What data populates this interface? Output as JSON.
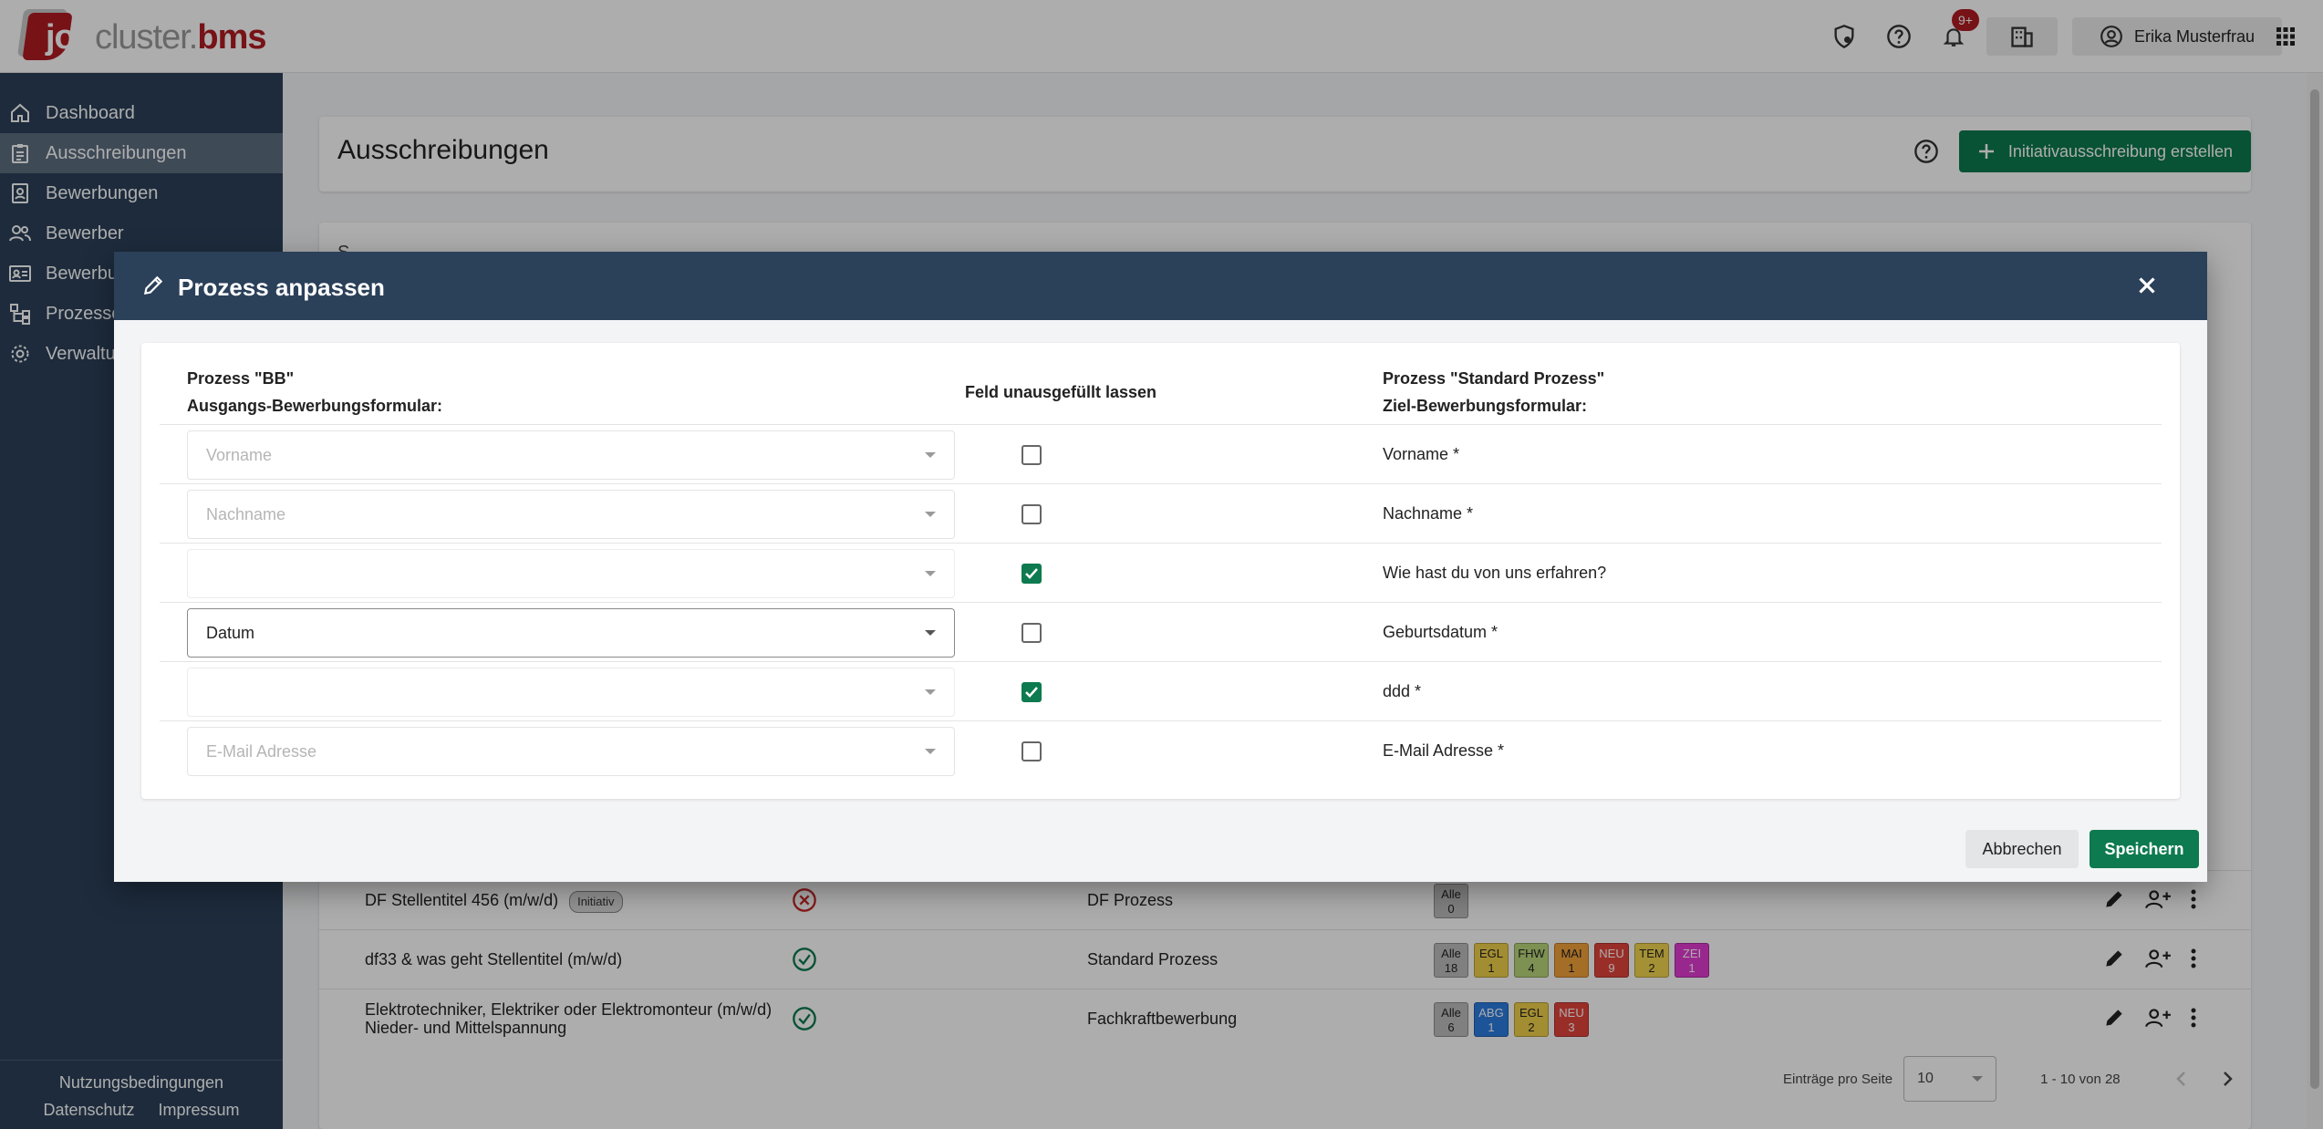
{
  "app": {
    "logo": {
      "job": "job",
      "cluster": "cluster.",
      "bms": "bms"
    },
    "user_name": "Erika Musterfrau",
    "notifications_badge": "9+"
  },
  "sidebar": {
    "items": [
      {
        "label": "Dashboard",
        "icon": "home-icon"
      },
      {
        "label": "Ausschreibungen",
        "icon": "clipboard-icon",
        "active": true
      },
      {
        "label": "Bewerbungen",
        "icon": "document-person-icon"
      },
      {
        "label": "Bewerber",
        "icon": "people-icon"
      },
      {
        "label": "Bewerbu",
        "icon": "id-card-icon"
      },
      {
        "label": "Prozesse",
        "icon": "flow-icon"
      },
      {
        "label": "Verwaltu",
        "icon": "gear-icon"
      }
    ],
    "footer": {
      "terms": "Nutzungsbedingungen",
      "privacy": "Datenschutz",
      "imprint": "Impressum"
    }
  },
  "page": {
    "title": "Ausschreibungen",
    "create_button": "Initiativausschreibung erstellen",
    "table_label": "S..."
  },
  "table": {
    "rows": [
      {
        "title_line1": "DF Stellentitel 456 (m/w/d)",
        "title_line2": "",
        "tag": "Initiativ",
        "status": "error",
        "process": "DF Prozess",
        "badges": [
          {
            "code": "Alle",
            "count": "0",
            "color": "#bdbdbd"
          }
        ]
      },
      {
        "title_line1": "df33 & was geht Stellentitel (m/w/d)",
        "title_line2": "",
        "tag": "",
        "status": "ok",
        "process": "Standard Prozess",
        "badges": [
          {
            "code": "Alle",
            "count": "18",
            "color": "#bdbdbd"
          },
          {
            "code": "EGL",
            "count": "1",
            "color": "#f1d04b"
          },
          {
            "code": "FHW",
            "count": "4",
            "color": "#b9d67a"
          },
          {
            "code": "MAI",
            "count": "1",
            "color": "#f4a23a"
          },
          {
            "code": "NEU",
            "count": "9",
            "color": "#e2453c"
          },
          {
            "code": "TEM",
            "count": "2",
            "color": "#f3d64e"
          },
          {
            "code": "ZEI",
            "count": "1",
            "color": "#e23bd2"
          }
        ]
      },
      {
        "title_line1": "Elektrotechniker, Elektriker oder Elektromonteur (m/w/d)",
        "title_line2": "Nieder- und Mittelspannung",
        "tag": "",
        "status": "ok",
        "process": "Fachkraftbewerbung",
        "badges": [
          {
            "code": "Alle",
            "count": "6",
            "color": "#bdbdbd"
          },
          {
            "code": "ABG",
            "count": "1",
            "color": "#2b7de0"
          },
          {
            "code": "EGL",
            "count": "2",
            "color": "#f1d04b"
          },
          {
            "code": "NEU",
            "count": "3",
            "color": "#e2453c"
          }
        ]
      }
    ],
    "pager": {
      "label": "Einträge pro Seite",
      "page_size": "10",
      "range": "1 - 10 von 28"
    }
  },
  "dialog": {
    "title": "Prozess anpassen",
    "source_header_line1": "Prozess \"BB\"",
    "source_header_line2": "Ausgangs-Bewerbungsformular:",
    "checkbox_header": "Feld unausgefüllt lassen",
    "target_header_line1": "Prozess \"Standard Prozess\"",
    "target_header_line2": "Ziel-Bewerbungsformular:",
    "rows": [
      {
        "source": "Vorname",
        "state": "placeholder",
        "skip": false,
        "target": "Vorname *"
      },
      {
        "source": "Nachname",
        "state": "placeholder",
        "skip": false,
        "target": "Nachname *"
      },
      {
        "source": "",
        "state": "blank",
        "skip": true,
        "target": "Wie hast du von uns erfahren?"
      },
      {
        "source": "Datum",
        "state": "filled",
        "skip": false,
        "target": "Geburtsdatum *"
      },
      {
        "source": "",
        "state": "blank",
        "skip": true,
        "target": "ddd *"
      },
      {
        "source": "E-Mail Adresse",
        "state": "placeholder",
        "skip": false,
        "target": "E-Mail Adresse *"
      }
    ],
    "cancel_label": "Abbrechen",
    "save_label": "Speichern"
  },
  "colors": {
    "primary": "#2b4059",
    "accent": "#0d7a4f",
    "brand": "#b01b22"
  }
}
